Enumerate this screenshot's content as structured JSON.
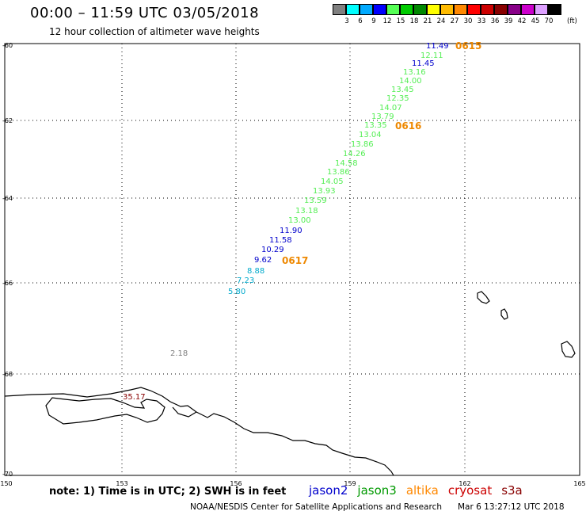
{
  "header": {
    "title": "00:00 – 11:59 UTC 03/05/2018",
    "subtitle": "12 hour collection of altimeter wave heights"
  },
  "color_scale": {
    "unit": "(ft)",
    "swatches": [
      "#808080",
      "#00ffff",
      "#00aaff",
      "#0000ff",
      "#55ff55",
      "#00cc00",
      "#008800",
      "#ffff00",
      "#ffbb00",
      "#ff8800",
      "#ff0000",
      "#cc0000",
      "#880000",
      "#880088",
      "#cc00cc",
      "#dda0ff",
      "#000000"
    ],
    "labels": [
      "3",
      "6",
      "9",
      "12",
      "15",
      "18",
      "21",
      "24",
      "27",
      "30",
      "33",
      "36",
      "39",
      "42",
      "45",
      "70"
    ]
  },
  "axes": {
    "lat_labels": [
      "-60",
      "-62",
      "-64",
      "-66",
      "-68",
      "-70"
    ],
    "lon_labels": [
      "150",
      "153",
      "156",
      "159",
      "162",
      "165"
    ]
  },
  "wave_heights": [
    {
      "value": "11.49",
      "sat": "jason2"
    },
    {
      "value": "12.11",
      "sat": "jason3"
    },
    {
      "value": "11.45",
      "sat": "jason2"
    },
    {
      "value": "13.16",
      "sat": "jason3"
    },
    {
      "value": "14.00",
      "sat": "jason3"
    },
    {
      "value": "13.45",
      "sat": "jason3"
    },
    {
      "value": "12.35",
      "sat": "jason3"
    },
    {
      "value": "14.07",
      "sat": "jason3"
    },
    {
      "value": "13.79",
      "sat": "jason3"
    },
    {
      "value": "13.35",
      "sat": "jason3"
    },
    {
      "value": "13.04",
      "sat": "jason3"
    },
    {
      "value": "13.86",
      "sat": "jason3"
    },
    {
      "value": "14.26",
      "sat": "jason3"
    },
    {
      "value": "14.58",
      "sat": "jason3"
    },
    {
      "value": "13.86",
      "sat": "jason3"
    },
    {
      "value": "14.05",
      "sat": "jason3"
    },
    {
      "value": "13.93",
      "sat": "jason3"
    },
    {
      "value": "13.59",
      "sat": "jason3"
    },
    {
      "value": "13.18",
      "sat": "jason3"
    },
    {
      "value": "13.00",
      "sat": "jason3"
    },
    {
      "value": "11.90",
      "sat": "jason2"
    },
    {
      "value": "11.58",
      "sat": "jason2"
    },
    {
      "value": "10.29",
      "sat": "jason2"
    },
    {
      "value": "9.62",
      "sat": "jason2"
    },
    {
      "value": "8.88",
      "sat": "cyan"
    },
    {
      "value": "7.23",
      "sat": "cyan"
    },
    {
      "value": "5.80",
      "sat": "cyan"
    },
    {
      "value": "2.18",
      "sat": "gray"
    },
    {
      "value": "35.17",
      "sat": "s3a"
    }
  ],
  "time_labels": [
    "0615",
    "0616",
    "0617"
  ],
  "satellites": [
    {
      "name": "jason2",
      "color": "#0000cc"
    },
    {
      "name": "jason3",
      "color": "#009900"
    },
    {
      "name": "altika",
      "color": "#ff8800"
    },
    {
      "name": "cryosat",
      "color": "#cc0000"
    },
    {
      "name": "s3a",
      "color": "#880000"
    }
  ],
  "colors": {
    "jason2": "#0000cc",
    "jason3": "#55ee55",
    "time": "#ee8800",
    "cyan": "#00aacc",
    "gray": "#808080",
    "s3a": "#880000"
  },
  "note": "note: 1) Time is in UTC; 2) SWH is in feet",
  "footer": {
    "credit": "NOAA/NESDIS Center for Satellite Applications and Research",
    "timestamp": "Mar  6 13:27:12 UTC 2018"
  }
}
